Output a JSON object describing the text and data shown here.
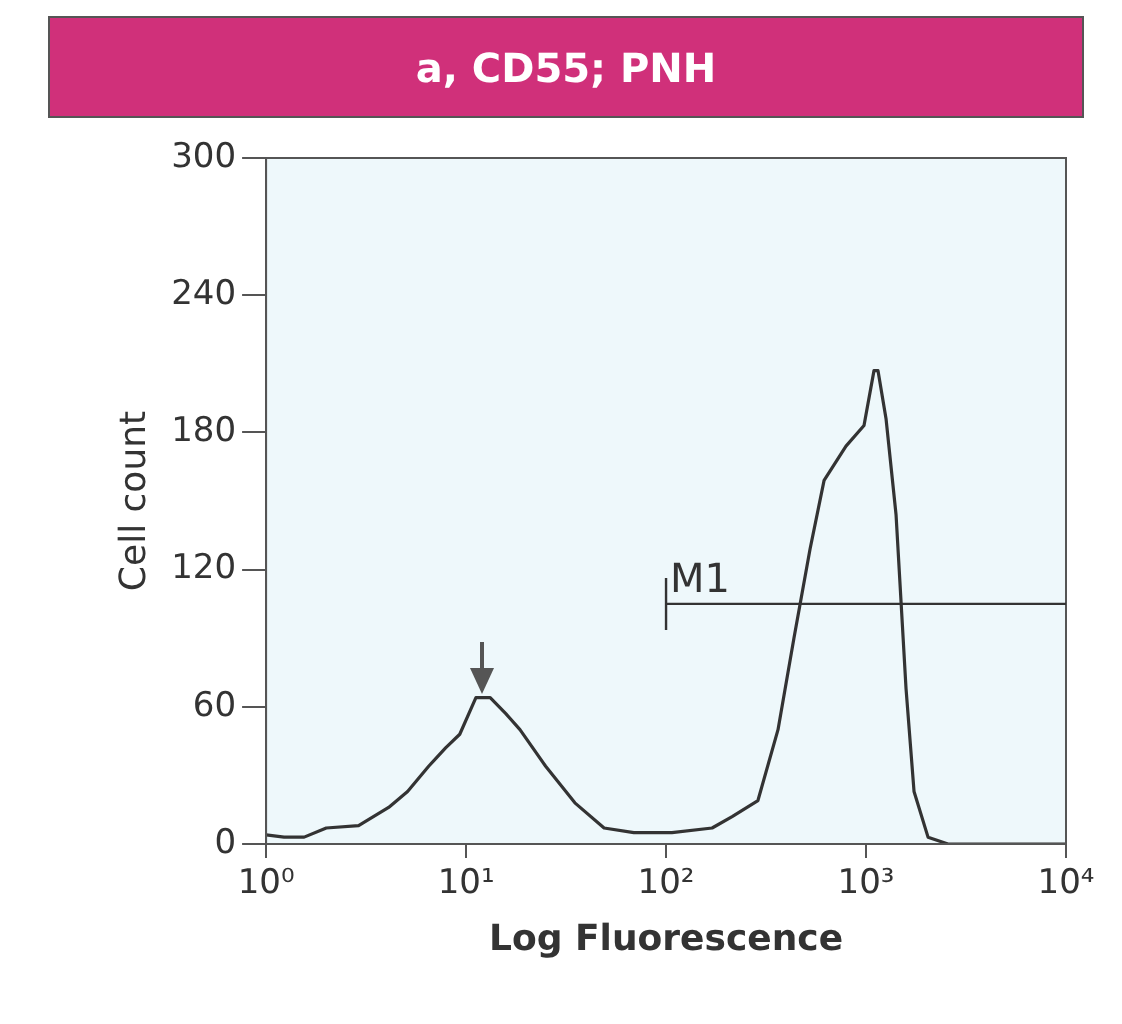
{
  "chart_data": {
    "type": "line",
    "title": "a, CD55; PNH",
    "xlabel": "Log Fluorescence",
    "ylabel": "Cell count",
    "x": [
      1,
      1.23,
      1.55,
      2.0,
      2.9,
      4.1,
      5.1,
      6.5,
      7.9,
      9.3,
      11.2,
      13.2,
      15.8,
      18.6,
      25,
      35,
      49,
      69,
      107,
      170,
      214,
      288,
      363,
      436,
      525,
      617,
      794,
      977,
      1096,
      1148,
      1259,
      1413,
      1585,
      1738,
      2042,
      2570,
      10000
    ],
    "series": [
      {
        "color": "#333333",
        "values": [
          4,
          3,
          3,
          7,
          8,
          16,
          23,
          34,
          42,
          48,
          64,
          64,
          57,
          50,
          34,
          18,
          7,
          5,
          5,
          7,
          12,
          19,
          50,
          90,
          129,
          159,
          174,
          183,
          207,
          207,
          186,
          144,
          68,
          23,
          3,
          0,
          0
        ]
      }
    ],
    "log": "x",
    "marker": "none",
    "xlim": [
      1,
      10000
    ],
    "xticks": [
      {
        "value": 1,
        "label": "10⁰"
      },
      {
        "value": 10,
        "label": "10¹"
      },
      {
        "value": 100,
        "label": "10²"
      },
      {
        "value": 1000,
        "label": "10³"
      },
      {
        "value": 10000,
        "label": "10⁴"
      }
    ],
    "ylim": [
      0,
      300
    ],
    "yticks": [
      0,
      60,
      120,
      180,
      240,
      300
    ],
    "annotations": [
      "M1"
    ]
  }
}
